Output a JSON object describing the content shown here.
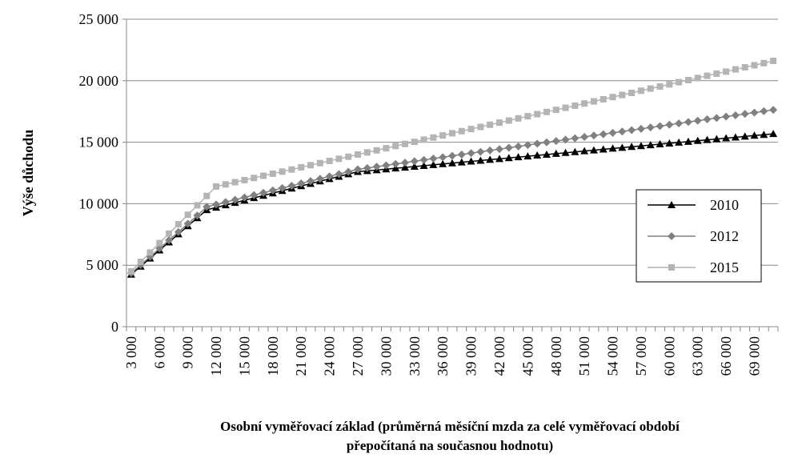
{
  "chart_data": {
    "type": "line",
    "y_label": "Výše důchodu",
    "x_label": [
      "Osobní vyměřovací základ (průměrná měsíční mzda za celé vyměřovací období",
      "přepočítaná na současnou hodnotu)"
    ],
    "categories": [
      "3 000",
      null,
      null,
      "6 000",
      null,
      null,
      "9 000",
      null,
      null,
      "12 000",
      null,
      null,
      "15 000",
      null,
      null,
      "18 000",
      null,
      null,
      "21 000",
      null,
      null,
      "24 000",
      null,
      null,
      "27 000",
      null,
      null,
      "30 000",
      null,
      null,
      "33 000",
      null,
      null,
      "36 000",
      null,
      null,
      "39 000",
      null,
      null,
      "42 000",
      null,
      null,
      "45 000",
      null,
      null,
      "48 000",
      null,
      null,
      "51 000",
      null,
      null,
      "54 000",
      null,
      null,
      "57 000",
      null,
      null,
      "60 000",
      null,
      null,
      "63 000",
      null,
      null,
      "66 000",
      null,
      null,
      "69 000",
      null,
      null
    ],
    "ylim": [
      0,
      25000
    ],
    "yticks": [
      0,
      {
        "value": 5000,
        "label": "5 000"
      },
      {
        "value": 10000,
        "label": "10 000"
      },
      {
        "value": 15000,
        "label": "15 000"
      },
      {
        "value": 20000,
        "label": "20 000"
      },
      {
        "value": 25000,
        "label": "25 000"
      }
    ],
    "grid": true,
    "legend": "right",
    "series": [
      {
        "name": "2010",
        "color": "#000000",
        "marker": "triangle",
        "values": [
          4250,
          4900,
          5560,
          6220,
          6870,
          7530,
          8190,
          8840,
          9500,
          9690,
          9890,
          10080,
          10280,
          10470,
          10660,
          10860,
          11050,
          11250,
          11440,
          11630,
          11830,
          12020,
          12210,
          12410,
          12600,
          12670,
          12740,
          12810,
          12880,
          12950,
          13020,
          13090,
          13160,
          13230,
          13300,
          13370,
          13440,
          13510,
          13580,
          13650,
          13720,
          13790,
          13860,
          13930,
          14000,
          14070,
          14140,
          14210,
          14280,
          14350,
          14420,
          14490,
          14560,
          14630,
          14700,
          14770,
          14840,
          14910,
          14980,
          15050,
          15120,
          15190,
          15260,
          15330,
          15400,
          15470,
          15540,
          15610,
          15680
        ]
      },
      {
        "name": "2012",
        "color": "#808080",
        "marker": "diamond",
        "values": [
          4350,
          5020,
          5690,
          6360,
          7030,
          7700,
          8370,
          9040,
          9750,
          9940,
          10130,
          10320,
          10510,
          10700,
          10890,
          11080,
          11270,
          11460,
          11650,
          11840,
          12030,
          12220,
          12410,
          12600,
          12790,
          12900,
          13010,
          13120,
          13230,
          13340,
          13450,
          13560,
          13670,
          13780,
          13890,
          14000,
          14110,
          14220,
          14330,
          14440,
          14550,
          14660,
          14770,
          14880,
          14990,
          15100,
          15210,
          15320,
          15430,
          15540,
          15650,
          15760,
          15870,
          15980,
          16090,
          16200,
          16310,
          16420,
          16530,
          16640,
          16750,
          16860,
          16970,
          17080,
          17190,
          17300,
          17410,
          17520,
          17630
        ]
      },
      {
        "name": "2015",
        "color": "#b4b4b4",
        "marker": "square",
        "values": [
          4500,
          5270,
          6030,
          6800,
          7570,
          8330,
          9100,
          9870,
          10630,
          11400,
          11570,
          11750,
          11920,
          12090,
          12270,
          12440,
          12610,
          12780,
          12960,
          13130,
          13300,
          13480,
          13650,
          13820,
          14000,
          14170,
          14340,
          14510,
          14690,
          14860,
          15030,
          15210,
          15380,
          15550,
          15730,
          15900,
          16070,
          16240,
          16420,
          16590,
          16760,
          16940,
          17110,
          17280,
          17460,
          17630,
          17800,
          17970,
          18150,
          18320,
          18490,
          18670,
          18840,
          19010,
          19190,
          19360,
          19530,
          19700,
          19880,
          20050,
          20220,
          20400,
          20570,
          20740,
          20920,
          21090,
          21260,
          21430,
          21610
        ]
      }
    ]
  }
}
